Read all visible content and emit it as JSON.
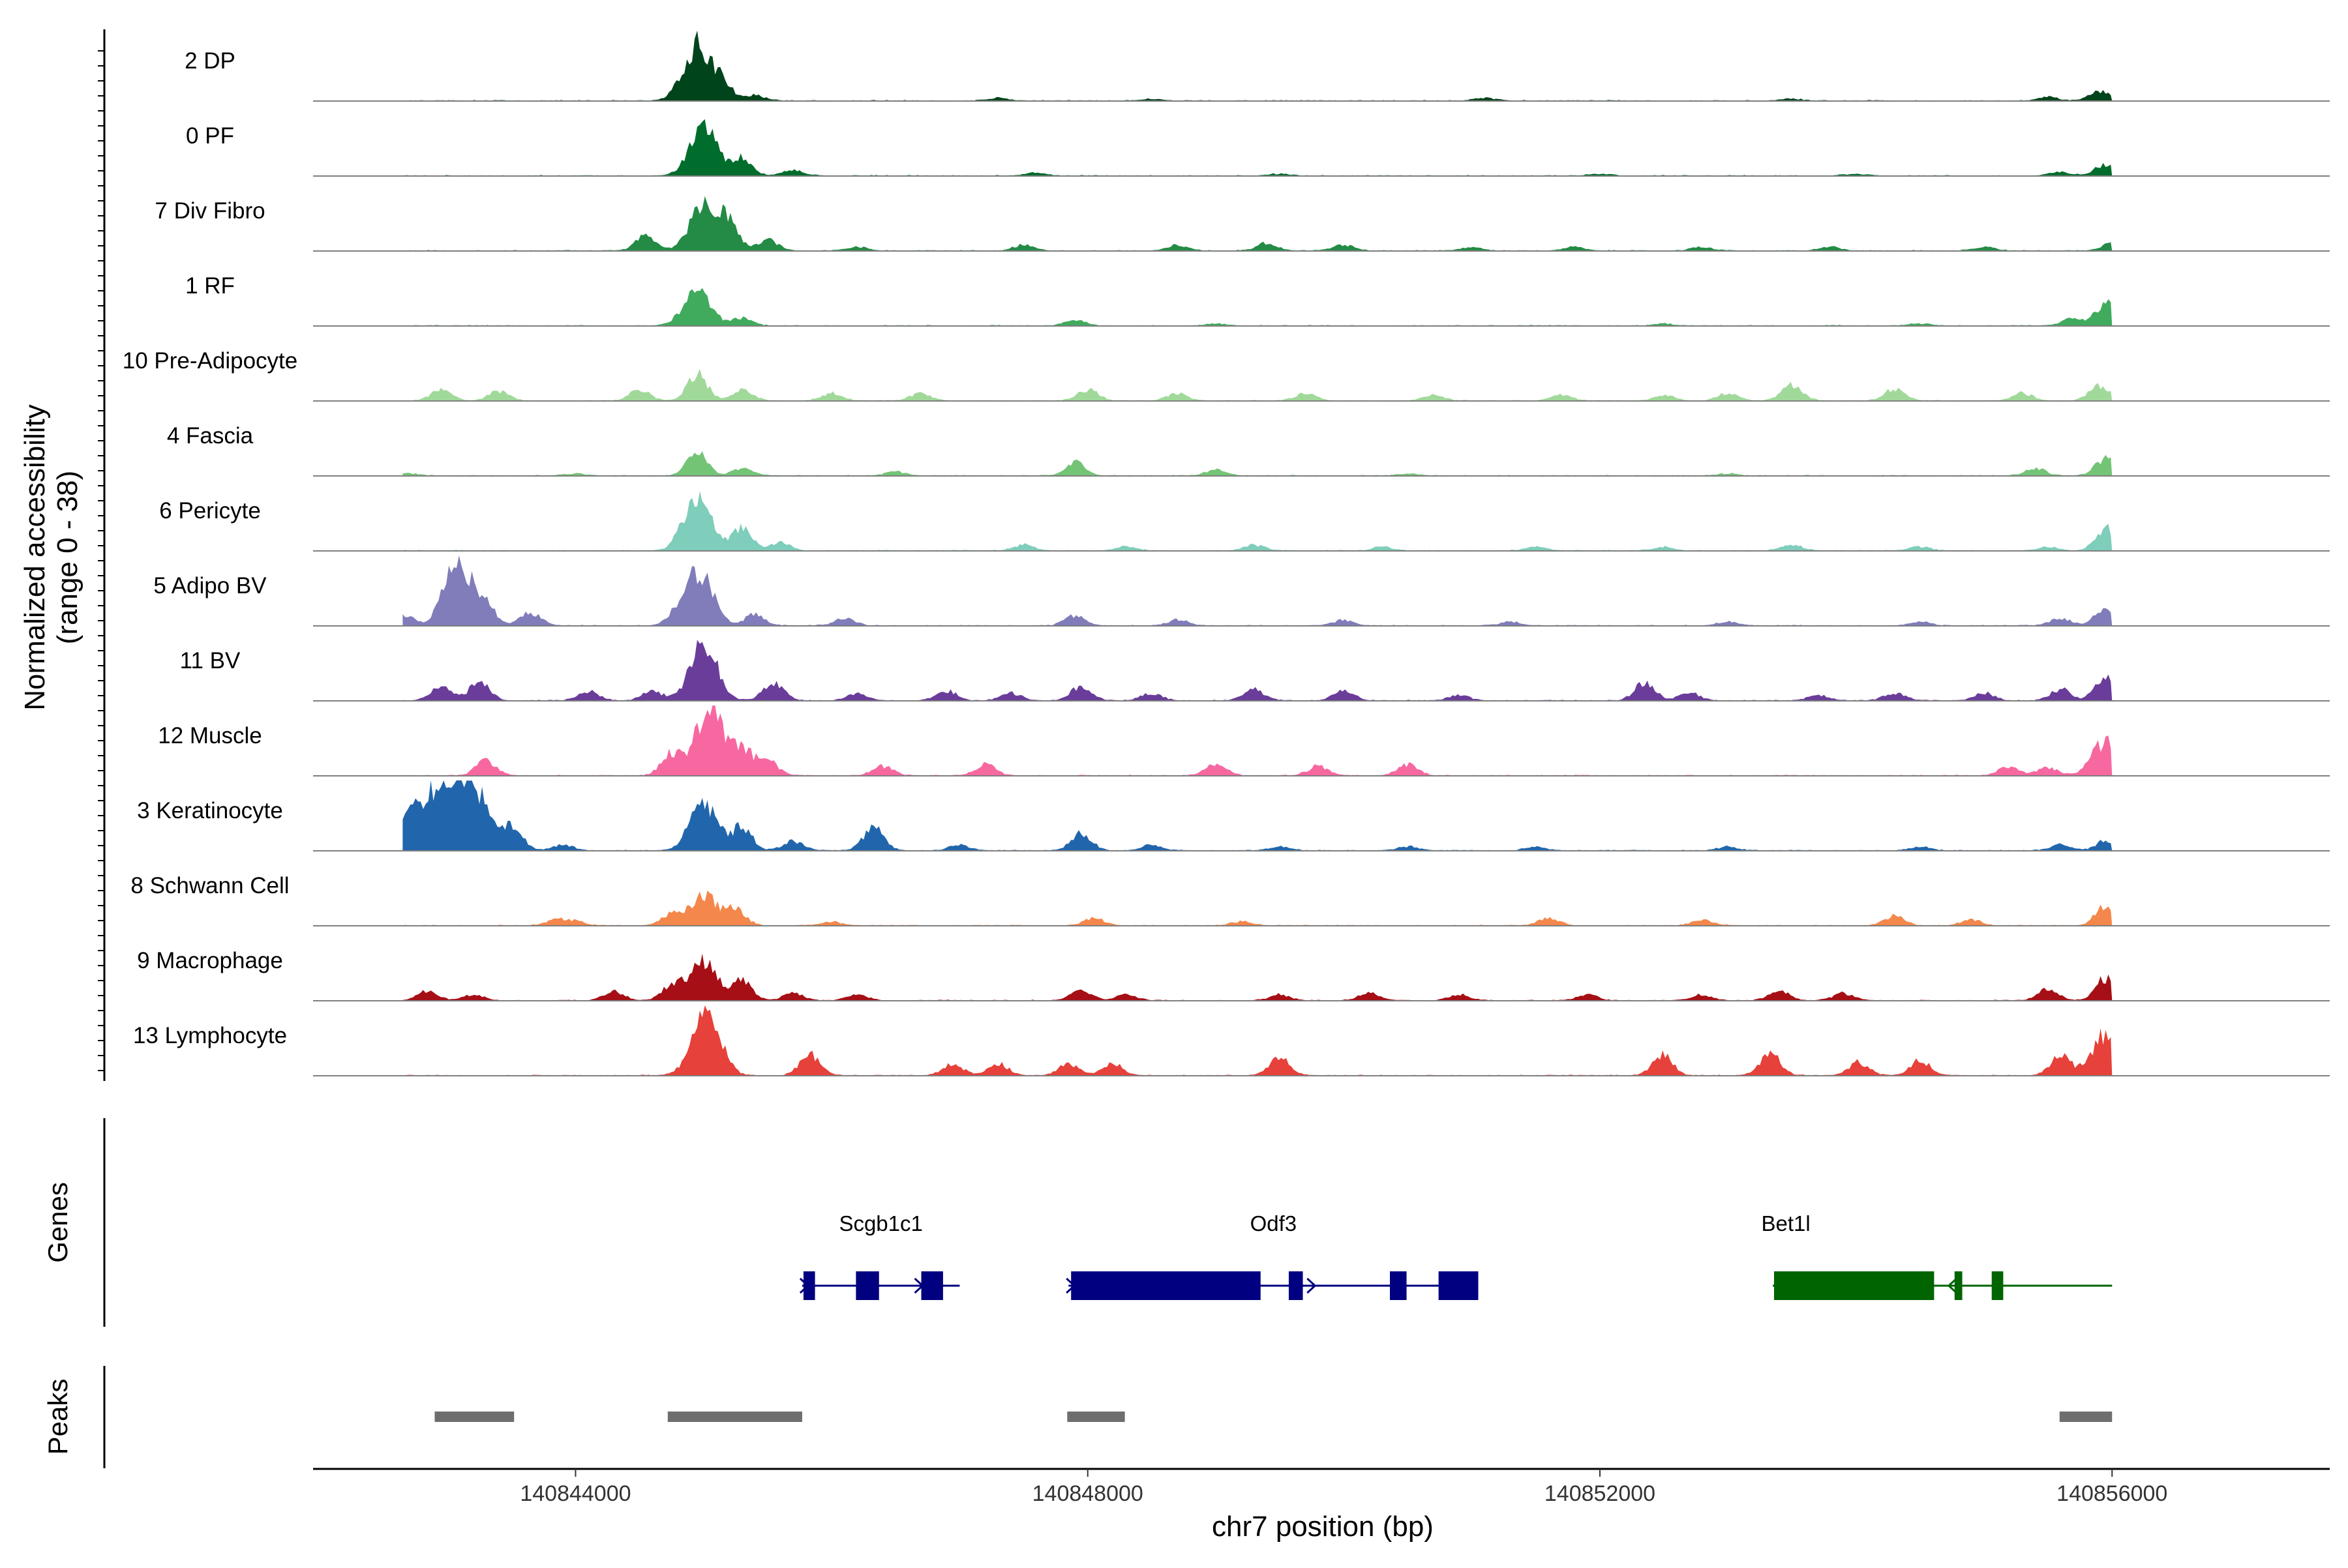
{
  "chart_data": {
    "type": "area",
    "chromosome": "chr7",
    "xlabel": "chr7 position (bp)",
    "ylabel": "Normalized accessibility",
    "ylabel_sub": "(range 0 - 38)",
    "ylim": [
      0,
      38
    ],
    "xlim": [
      140841950,
      140857700
    ],
    "xticks": [
      {
        "value": 140844000,
        "label": "140844000"
      },
      {
        "value": 140848000,
        "label": "140848000"
      },
      {
        "value": 140852000,
        "label": "140852000"
      },
      {
        "value": 140856000,
        "label": "140856000"
      }
    ],
    "series": [
      {
        "name": "2 DP",
        "color": "#00441b",
        "peaks": [
          [
            140844950,
            30
          ],
          [
            140845150,
            8
          ],
          [
            140845400,
            3
          ],
          [
            140847300,
            1.5
          ],
          [
            140848500,
            1
          ],
          [
            140851100,
            1.5
          ],
          [
            140853500,
            1
          ],
          [
            140855500,
            2
          ],
          [
            140855900,
            5
          ]
        ]
      },
      {
        "name": "0 PF",
        "color": "#006d2c",
        "peaks": [
          [
            140845000,
            25
          ],
          [
            140845300,
            9
          ],
          [
            140845700,
            3
          ],
          [
            140847600,
            1.5
          ],
          [
            140849500,
            1
          ],
          [
            140852000,
            1
          ],
          [
            140854000,
            1
          ],
          [
            140855600,
            2
          ],
          [
            140855950,
            6
          ]
        ]
      },
      {
        "name": "7 Div Fibro",
        "color": "#238b45",
        "peaks": [
          [
            140844550,
            8
          ],
          [
            140845000,
            24
          ],
          [
            140845200,
            14
          ],
          [
            140845500,
            6
          ],
          [
            140846200,
            2
          ],
          [
            140847500,
            3
          ],
          [
            140848700,
            3
          ],
          [
            140849400,
            4
          ],
          [
            140850000,
            3
          ],
          [
            140851000,
            2
          ],
          [
            140851800,
            2
          ],
          [
            140852800,
            2
          ],
          [
            140853800,
            2
          ],
          [
            140855000,
            2
          ],
          [
            140856000,
            4
          ]
        ]
      },
      {
        "name": "1 RF",
        "color": "#41ab5d",
        "peaks": [
          [
            140844950,
            18
          ],
          [
            140845300,
            4
          ],
          [
            140847900,
            3
          ],
          [
            140849000,
            1
          ],
          [
            140852500,
            1
          ],
          [
            140854500,
            1
          ],
          [
            140855700,
            4
          ],
          [
            140855950,
            12
          ]
        ]
      },
      {
        "name": "10 Pre-Adipocyte",
        "color": "#a1d99b",
        "peaks": [
          [
            140842950,
            6
          ],
          [
            140843400,
            5
          ],
          [
            140844500,
            6
          ],
          [
            140844950,
            14
          ],
          [
            140845300,
            6
          ],
          [
            140846000,
            4
          ],
          [
            140846700,
            4
          ],
          [
            140848000,
            6
          ],
          [
            140848700,
            4
          ],
          [
            140849700,
            4
          ],
          [
            140850700,
            3
          ],
          [
            140851700,
            3
          ],
          [
            140852500,
            3
          ],
          [
            140853000,
            4
          ],
          [
            140853500,
            9
          ],
          [
            140854300,
            6
          ],
          [
            140855300,
            4
          ],
          [
            140855900,
            8
          ]
        ]
      },
      {
        "name": "4 Fascia",
        "color": "#74c476",
        "peaks": [
          [
            140842700,
            1
          ],
          [
            140844000,
            1
          ],
          [
            140844950,
            12
          ],
          [
            140845300,
            4
          ],
          [
            140846500,
            2
          ],
          [
            140847900,
            7
          ],
          [
            140849000,
            3
          ],
          [
            140850500,
            1
          ],
          [
            140853000,
            1
          ],
          [
            140855400,
            4
          ],
          [
            140855950,
            9
          ]
        ]
      },
      {
        "name": "6 Pericyte",
        "color": "#7fcdbb",
        "peaks": [
          [
            140844950,
            28
          ],
          [
            140845300,
            12
          ],
          [
            140845600,
            4
          ],
          [
            140847500,
            3
          ],
          [
            140848300,
            2
          ],
          [
            140849300,
            3
          ],
          [
            140850300,
            2
          ],
          [
            140851500,
            2
          ],
          [
            140852500,
            2
          ],
          [
            140853500,
            3
          ],
          [
            140854500,
            2
          ],
          [
            140855500,
            2
          ],
          [
            140855950,
            12
          ]
        ]
      },
      {
        "name": "5 Adipo BV",
        "color": "#807dba",
        "peaks": [
          [
            140842650,
            6
          ],
          [
            140843080,
            34
          ],
          [
            140843300,
            10
          ],
          [
            140843650,
            7
          ],
          [
            140844800,
            6
          ],
          [
            140844970,
            28
          ],
          [
            140845400,
            6
          ],
          [
            140846100,
            4
          ],
          [
            140847900,
            5
          ],
          [
            140848700,
            3
          ],
          [
            140850000,
            3
          ],
          [
            140851300,
            2
          ],
          [
            140853000,
            2
          ],
          [
            140854500,
            2
          ],
          [
            140855600,
            4
          ],
          [
            140855950,
            10
          ]
        ]
      },
      {
        "name": "11 BV",
        "color": "#6a3d9a",
        "peaks": [
          [
            140842950,
            8
          ],
          [
            140843250,
            10
          ],
          [
            140844100,
            5
          ],
          [
            140844600,
            5
          ],
          [
            140845000,
            30
          ],
          [
            140845550,
            10
          ],
          [
            140846200,
            4
          ],
          [
            140846900,
            5
          ],
          [
            140847400,
            4
          ],
          [
            140847950,
            8
          ],
          [
            140848500,
            4
          ],
          [
            140849300,
            6
          ],
          [
            140850000,
            5
          ],
          [
            140850900,
            3
          ],
          [
            140852350,
            10
          ],
          [
            140852700,
            4
          ],
          [
            140853700,
            3
          ],
          [
            140854300,
            4
          ],
          [
            140855000,
            4
          ],
          [
            140855600,
            6
          ],
          [
            140855950,
            14
          ]
        ]
      },
      {
        "name": "12 Muscle",
        "color": "#f768a1",
        "peaks": [
          [
            140843300,
            8
          ],
          [
            140844750,
            12
          ],
          [
            140845050,
            38
          ],
          [
            140845300,
            14
          ],
          [
            140845500,
            8
          ],
          [
            140846400,
            5
          ],
          [
            140847200,
            6
          ],
          [
            140849000,
            6
          ],
          [
            140849800,
            5
          ],
          [
            140850500,
            6
          ],
          [
            140855200,
            5
          ],
          [
            140855500,
            4
          ],
          [
            140855950,
            18
          ]
        ]
      },
      {
        "name": "3 Keratinocyte",
        "color": "#2166ac",
        "peaks": [
          [
            140842700,
            20
          ],
          [
            140842960,
            38
          ],
          [
            140843200,
            34
          ],
          [
            140843500,
            14
          ],
          [
            140843900,
            3
          ],
          [
            140845000,
            26
          ],
          [
            140845300,
            12
          ],
          [
            140845700,
            5
          ],
          [
            140846330,
            13
          ],
          [
            140847000,
            3
          ],
          [
            140847950,
            9
          ],
          [
            140848500,
            3
          ],
          [
            140849500,
            2
          ],
          [
            140850500,
            2
          ],
          [
            140851500,
            2
          ],
          [
            140853000,
            2
          ],
          [
            140854500,
            2
          ],
          [
            140855600,
            3
          ],
          [
            140855950,
            5
          ]
        ]
      },
      {
        "name": "8 Schwann Cell",
        "color": "#f4874b",
        "peaks": [
          [
            140843850,
            3
          ],
          [
            140844000,
            2
          ],
          [
            140844750,
            6
          ],
          [
            140845000,
            16
          ],
          [
            140845250,
            8
          ],
          [
            140846000,
            2
          ],
          [
            140848050,
            4
          ],
          [
            140849200,
            2
          ],
          [
            140851600,
            4
          ],
          [
            140852800,
            3
          ],
          [
            140854300,
            5
          ],
          [
            140854900,
            3
          ],
          [
            140855950,
            10
          ]
        ]
      },
      {
        "name": "9 Macrophage",
        "color": "#a50f15",
        "peaks": [
          [
            140842850,
            5
          ],
          [
            140843200,
            3
          ],
          [
            140844300,
            5
          ],
          [
            140844750,
            8
          ],
          [
            140845000,
            22
          ],
          [
            140845300,
            10
          ],
          [
            140845700,
            4
          ],
          [
            140846200,
            3
          ],
          [
            140847950,
            6
          ],
          [
            140848300,
            3
          ],
          [
            140849500,
            3
          ],
          [
            140850200,
            4
          ],
          [
            140850900,
            3
          ],
          [
            140851900,
            3
          ],
          [
            140852800,
            3
          ],
          [
            140853400,
            5
          ],
          [
            140853900,
            4
          ],
          [
            140855500,
            6
          ],
          [
            140855950,
            12
          ]
        ]
      },
      {
        "name": "13 Lymphocyte",
        "color": "#e6413a",
        "peaks": [
          [
            140845020,
            36
          ],
          [
            140845830,
            11
          ],
          [
            140846950,
            6
          ],
          [
            140847300,
            6
          ],
          [
            140847850,
            6
          ],
          [
            140848200,
            6
          ],
          [
            140849500,
            10
          ],
          [
            140852490,
            11
          ],
          [
            140853330,
            12
          ],
          [
            140854020,
            7
          ],
          [
            140854500,
            8
          ],
          [
            140855600,
            10
          ],
          [
            140855950,
            22
          ]
        ]
      }
    ],
    "genes": [
      {
        "name": "Scgb1c1",
        "start": 140845770,
        "end": 140847000,
        "strand": "+",
        "color": "#000080",
        "exons": [
          [
            140845780,
            140845870
          ],
          [
            140846190,
            140846370
          ],
          [
            140846700,
            140846870
          ]
        ]
      },
      {
        "name": "Odf3",
        "start": 140847850,
        "end": 140851050,
        "strand": "+",
        "color": "#000080",
        "exons": [
          [
            140847870,
            140849350
          ],
          [
            140849570,
            140849680
          ],
          [
            140850360,
            140850490
          ],
          [
            140850740,
            140851050
          ]
        ]
      },
      {
        "name": "Bet1l",
        "start": 140853350,
        "end": 140856000,
        "strand": "-",
        "color": "#006400",
        "exons": [
          [
            140853360,
            140854610
          ],
          [
            140854770,
            140854830
          ],
          [
            140855060,
            140855150
          ]
        ]
      }
    ],
    "gene_panel_title": "Genes",
    "peaks_panel_title": "Peaks",
    "peak_color": "#6e6e6e",
    "peak_regions": [
      [
        140842900,
        140843520
      ],
      [
        140844720,
        140845770
      ],
      [
        140847840,
        140848290
      ],
      [
        140855590,
        140856000
      ]
    ]
  }
}
